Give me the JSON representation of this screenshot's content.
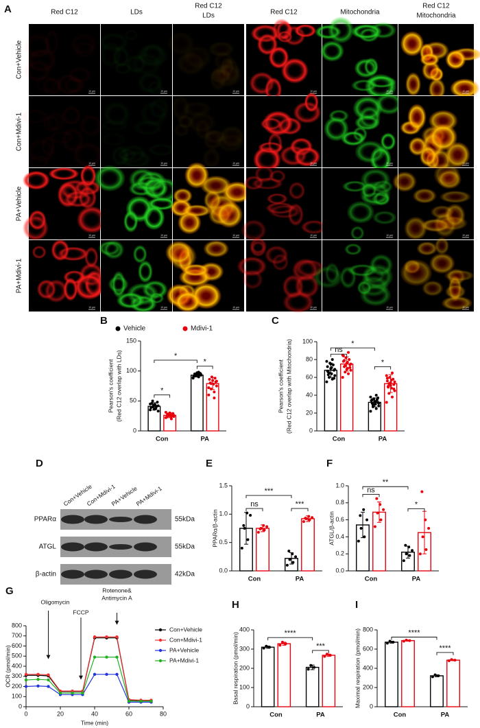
{
  "panel_a": {
    "label": "A",
    "left_columns": [
      [
        "Red C12"
      ],
      [
        "LDs"
      ],
      [
        "Red C12",
        "LDs"
      ]
    ],
    "right_columns": [
      [
        "Red C12"
      ],
      [
        "Mitochondria"
      ],
      [
        "Red C12",
        "Mitochondria"
      ]
    ],
    "rows": [
      "Con+Vehicle",
      "Con+Mdivi-1",
      "PA+Vehicle",
      "PA+Mdivi-1"
    ],
    "scale_bar": "10 μm"
  },
  "panel_d": {
    "label": "D",
    "lanes": [
      "Con+Vehicle",
      "Con+Mdivi-1",
      "PA+Vehicle",
      "PA+Mdivi-1"
    ],
    "blots": [
      {
        "protein": "PPARα",
        "size": "55kDa"
      },
      {
        "protein": "ATGL",
        "size": "55kDa"
      },
      {
        "protein": "β-actin",
        "size": "42kDa"
      }
    ]
  },
  "chart_data": [
    {
      "type": "bar",
      "panel": "B",
      "ylabel": [
        "Pearson's coefficient",
        "(Red C12 overlap with LDs)"
      ],
      "categories": [
        "Con",
        "PA"
      ],
      "ylim": [
        0,
        150
      ],
      "yticks": [
        0,
        50,
        100,
        150
      ],
      "legend": "top",
      "series": [
        {
          "name": "Vehicle",
          "color": "#000000",
          "values": [
            41,
            93
          ],
          "errors": [
            6,
            3
          ],
          "points": [
            [
              35,
              38,
              40,
              42,
              44,
              46,
              48,
              36,
              39,
              41,
              43,
              45,
              37,
              50,
              33
            ],
            [
              88,
              90,
              92,
              93,
              94,
              95,
              96,
              97,
              91,
              93,
              95,
              89,
              98,
              92,
              94
            ]
          ]
        },
        {
          "name": "Mdivi-1",
          "color": "#e8000b",
          "values": [
            26,
            79
          ],
          "errors": [
            4,
            10
          ],
          "points": [
            [
              22,
              24,
              25,
              26,
              27,
              28,
              29,
              30,
              23,
              25,
              27,
              31,
              20,
              26,
              24
            ],
            [
              60,
              65,
              70,
              75,
              78,
              80,
              82,
              84,
              86,
              88,
              90,
              72,
              55,
              79,
              83
            ]
          ]
        }
      ],
      "annotations": [
        "*",
        "*",
        "*"
      ]
    },
    {
      "type": "bar",
      "panel": "C",
      "ylabel": [
        "Pearson's coefficient",
        "(Red C12 overlap with Mitochondria)"
      ],
      "categories": [
        "Con",
        "PA"
      ],
      "ylim": [
        0,
        100
      ],
      "yticks": [
        0,
        20,
        40,
        60,
        80,
        100
      ],
      "series": [
        {
          "color": "#000000",
          "values": [
            68,
            32
          ],
          "errors": [
            8,
            5
          ],
          "points": [
            [
              55,
              58,
              60,
              62,
              64,
              66,
              68,
              70,
              72,
              74,
              76,
              78,
              80,
              65,
              69,
              71,
              63,
              59,
              75,
              67
            ],
            [
              22,
              25,
              27,
              28,
              30,
              31,
              32,
              33,
              34,
              35,
              36,
              38,
              40,
              29,
              31,
              33,
              35,
              37,
              30,
              34
            ]
          ]
        },
        {
          "color": "#e8000b",
          "values": [
            75,
            53
          ],
          "errors": [
            8,
            10
          ],
          "points": [
            [
              60,
              64,
              66,
              68,
              70,
              72,
              74,
              76,
              78,
              80,
              82,
              85,
              88,
              73,
              75,
              77,
              79,
              71,
              69,
              84
            ],
            [
              32,
              38,
              42,
              45,
              48,
              50,
              52,
              54,
              56,
              58,
              60,
              62,
              65,
              53,
              55,
              57,
              49,
              47,
              51,
              59
            ]
          ]
        }
      ],
      "annotations": [
        "*",
        "ns",
        "*"
      ]
    },
    {
      "type": "bar",
      "panel": "E",
      "ylabel": [
        "PPARα/β-actin"
      ],
      "categories": [
        "Con",
        "PA"
      ],
      "ylim": [
        0,
        1.5
      ],
      "yticks": [
        {
          "value": 0,
          "label": "0.0"
        },
        0.5,
        {
          "value": 1,
          "label": "1.0"
        },
        1.5
      ],
      "series": [
        {
          "color": "#000000",
          "values": [
            0.75,
            0.22
          ],
          "errors": [
            0.28,
            0.1
          ],
          "points": [
            [
              0.4,
              0.55,
              0.75,
              0.98,
              1.02,
              0.8
            ],
            [
              0.1,
              0.15,
              0.2,
              0.25,
              0.3,
              0.35
            ]
          ]
        },
        {
          "color": "#e8000b",
          "values": [
            0.75,
            0.92
          ],
          "errors": [
            0.06,
            0.05
          ],
          "points": [
            [
              0.68,
              0.72,
              0.75,
              0.78,
              0.8,
              0.74
            ],
            [
              0.87,
              0.9,
              0.92,
              0.94,
              0.96,
              0.93
            ]
          ]
        }
      ],
      "annotations": [
        "***",
        "ns",
        "***"
      ]
    },
    {
      "type": "bar",
      "panel": "F",
      "ylabel": [
        "ATGL/β-actin"
      ],
      "categories": [
        "Con",
        "PA"
      ],
      "ylim": [
        0,
        1
      ],
      "yticks": [
        {
          "value": 0,
          "label": "0.0"
        },
        0.2,
        0.4,
        0.6,
        0.8,
        {
          "value": 1,
          "label": "1.0"
        }
      ],
      "series": [
        {
          "color": "#000000",
          "values": [
            0.54,
            0.22
          ],
          "errors": [
            0.15,
            0.07
          ],
          "points": [
            [
              0.35,
              0.4,
              0.5,
              0.6,
              0.72,
              0.65
            ],
            [
              0.12,
              0.18,
              0.2,
              0.24,
              0.28,
              0.3
            ]
          ]
        },
        {
          "color": "#e8000b",
          "values": [
            0.69,
            0.45
          ],
          "errors": [
            0.12,
            0.25
          ],
          "points": [
            [
              0.52,
              0.6,
              0.68,
              0.72,
              0.78,
              0.85
            ],
            [
              0.2,
              0.25,
              0.4,
              0.5,
              0.6,
              0.93
            ]
          ]
        }
      ],
      "annotations": [
        "**",
        "ns",
        "*"
      ]
    },
    {
      "type": "line",
      "panel": "G",
      "xlabel": "Time (min)",
      "ylabel": [
        "OCR (pmol/min)"
      ],
      "x": [
        0,
        7,
        13,
        20,
        27,
        33,
        40,
        47,
        53,
        60,
        67,
        73
      ],
      "xlim": [
        0,
        80
      ],
      "xticks": [
        0,
        20,
        40,
        60,
        80
      ],
      "ylim": [
        0,
        800
      ],
      "yticks": [
        0,
        100,
        200,
        300,
        400,
        500,
        600,
        700,
        800
      ],
      "legend": "right",
      "series": [
        {
          "name": "Con+Vehicle",
          "color": "#000000",
          "values": [
            310,
            310,
            305,
            150,
            150,
            150,
            680,
            680,
            680,
            65,
            60,
            60
          ]
        },
        {
          "name": "Con+Mdivi-1",
          "color": "#f03030",
          "values": [
            320,
            320,
            315,
            155,
            155,
            155,
            690,
            690,
            690,
            70,
            65,
            65
          ]
        },
        {
          "name": "PA+Vehicle",
          "color": "#2233dd",
          "values": [
            200,
            205,
            200,
            120,
            120,
            120,
            320,
            320,
            320,
            45,
            45,
            45
          ]
        },
        {
          "name": "PA+Mdivi-1",
          "color": "#22b022",
          "values": [
            265,
            270,
            265,
            135,
            135,
            135,
            490,
            490,
            490,
            55,
            55,
            55
          ]
        }
      ],
      "annotations": [
        [
          "Oligomycin"
        ],
        [
          "FCCP"
        ],
        [
          "Rotenone&",
          "Antimycin A"
        ]
      ]
    },
    {
      "type": "bar",
      "panel": "H",
      "ylabel": [
        "Basal respiration (pmol/min)"
      ],
      "categories": [
        "Con",
        "PA"
      ],
      "ylim": [
        0,
        400
      ],
      "yticks": [
        0,
        100,
        200,
        300,
        400
      ],
      "series": [
        {
          "color": "#000000",
          "values": [
            310,
            205
          ],
          "errors": [
            6,
            12
          ],
          "points": [
            [
              305,
              310,
              315
            ],
            [
              195,
              205,
              215
            ]
          ]
        },
        {
          "color": "#e8000b",
          "values": [
            328,
            268
          ],
          "errors": [
            8,
            6
          ],
          "points": [
            [
              320,
              328,
              336
            ],
            [
              262,
              268,
              274
            ]
          ]
        }
      ],
      "annotations": [
        "****",
        "***"
      ]
    },
    {
      "type": "bar",
      "panel": "I",
      "ylabel": [
        "Maximal respiration (pmol/min)"
      ],
      "categories": [
        "Con",
        "PA"
      ],
      "ylim": [
        0,
        800
      ],
      "yticks": [
        0,
        200,
        400,
        600,
        800
      ],
      "series": [
        {
          "color": "#000000",
          "values": [
            672,
            322
          ],
          "errors": [
            10,
            10
          ],
          "points": [
            [
              662,
              672,
              682
            ],
            [
              312,
              322,
              332
            ]
          ]
        },
        {
          "color": "#e8000b",
          "values": [
            688,
            485
          ],
          "errors": [
            6,
            6
          ],
          "points": [
            [
              682,
              688,
              694
            ],
            [
              479,
              485,
              491
            ]
          ]
        }
      ],
      "annotations": [
        "****",
        "****"
      ]
    }
  ]
}
